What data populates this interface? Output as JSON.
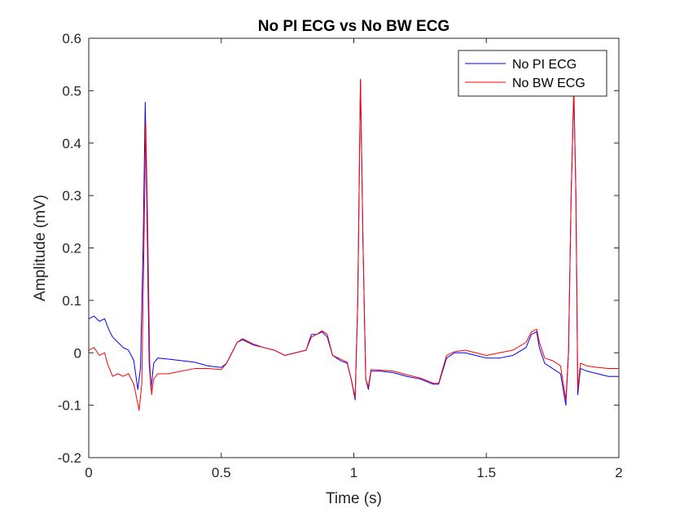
{
  "chart_data": {
    "type": "line",
    "title": "No PI ECG vs No BW ECG",
    "xlabel": "Time (s)",
    "ylabel": "Amplitude (mV)",
    "xlim": [
      0,
      2
    ],
    "ylim": [
      -0.2,
      0.6
    ],
    "xticks": [
      0,
      0.5,
      1,
      1.5,
      2
    ],
    "xtick_labels": [
      "0",
      "0.5",
      "1",
      "1.5",
      "2"
    ],
    "yticks": [
      -0.2,
      -0.1,
      0,
      0.1,
      0.2,
      0.3,
      0.4,
      0.5,
      0.6
    ],
    "ytick_labels": [
      "-0.2",
      "-0.1",
      "0",
      "0.1",
      "0.2",
      "0.3",
      "0.4",
      "0.5",
      "0.6"
    ],
    "grid": false,
    "legend": "top-right",
    "series": [
      {
        "name": "No PI ECG",
        "color": "#0000ff",
        "points": [
          [
            0.0,
            0.065
          ],
          [
            0.02,
            0.07
          ],
          [
            0.04,
            0.06
          ],
          [
            0.06,
            0.065
          ],
          [
            0.075,
            0.045
          ],
          [
            0.09,
            0.03
          ],
          [
            0.11,
            0.02
          ],
          [
            0.13,
            0.01
          ],
          [
            0.15,
            0.005
          ],
          [
            0.17,
            -0.015
          ],
          [
            0.185,
            -0.07
          ],
          [
            0.195,
            -0.03
          ],
          [
            0.205,
            0.2
          ],
          [
            0.213,
            0.478
          ],
          [
            0.22,
            0.25
          ],
          [
            0.228,
            -0.02
          ],
          [
            0.235,
            -0.07
          ],
          [
            0.245,
            -0.02
          ],
          [
            0.26,
            -0.01
          ],
          [
            0.3,
            -0.012
          ],
          [
            0.35,
            -0.015
          ],
          [
            0.4,
            -0.018
          ],
          [
            0.45,
            -0.025
          ],
          [
            0.5,
            -0.028
          ],
          [
            0.52,
            -0.02
          ],
          [
            0.54,
            0.0
          ],
          [
            0.56,
            0.02
          ],
          [
            0.58,
            0.025
          ],
          [
            0.62,
            0.015
          ],
          [
            0.66,
            0.01
          ],
          [
            0.7,
            0.005
          ],
          [
            0.74,
            -0.005
          ],
          [
            0.78,
            0.0
          ],
          [
            0.82,
            0.005
          ],
          [
            0.84,
            0.035
          ],
          [
            0.86,
            0.035
          ],
          [
            0.88,
            0.04
          ],
          [
            0.9,
            0.03
          ],
          [
            0.92,
            -0.005
          ],
          [
            0.95,
            -0.015
          ],
          [
            0.975,
            -0.02
          ],
          [
            0.99,
            -0.05
          ],
          [
            1.005,
            -0.09
          ],
          [
            1.015,
            0.1
          ],
          [
            1.025,
            0.52
          ],
          [
            1.035,
            0.2
          ],
          [
            1.045,
            -0.05
          ],
          [
            1.055,
            -0.07
          ],
          [
            1.065,
            -0.035
          ],
          [
            1.1,
            -0.035
          ],
          [
            1.15,
            -0.038
          ],
          [
            1.2,
            -0.045
          ],
          [
            1.25,
            -0.05
          ],
          [
            1.3,
            -0.06
          ],
          [
            1.32,
            -0.06
          ],
          [
            1.35,
            -0.01
          ],
          [
            1.38,
            0.0
          ],
          [
            1.42,
            0.0
          ],
          [
            1.46,
            -0.005
          ],
          [
            1.5,
            -0.01
          ],
          [
            1.55,
            -0.01
          ],
          [
            1.6,
            -0.005
          ],
          [
            1.65,
            0.01
          ],
          [
            1.67,
            0.035
          ],
          [
            1.69,
            0.04
          ],
          [
            1.7,
            0.01
          ],
          [
            1.72,
            -0.02
          ],
          [
            1.75,
            -0.03
          ],
          [
            1.78,
            -0.04
          ],
          [
            1.8,
            -0.1
          ],
          [
            1.81,
            0.0
          ],
          [
            1.82,
            0.3
          ],
          [
            1.83,
            0.5
          ],
          [
            1.838,
            0.3
          ],
          [
            1.845,
            -0.08
          ],
          [
            1.855,
            -0.03
          ],
          [
            1.88,
            -0.035
          ],
          [
            1.92,
            -0.04
          ],
          [
            1.96,
            -0.045
          ],
          [
            2.0,
            -0.045
          ]
        ]
      },
      {
        "name": "No BW ECG",
        "color": "#ff0000",
        "points": [
          [
            0.0,
            0.005
          ],
          [
            0.02,
            0.01
          ],
          [
            0.04,
            -0.005
          ],
          [
            0.06,
            0.0
          ],
          [
            0.07,
            -0.02
          ],
          [
            0.09,
            -0.045
          ],
          [
            0.11,
            -0.04
          ],
          [
            0.13,
            -0.045
          ],
          [
            0.15,
            -0.04
          ],
          [
            0.17,
            -0.06
          ],
          [
            0.19,
            -0.11
          ],
          [
            0.2,
            -0.06
          ],
          [
            0.208,
            0.2
          ],
          [
            0.215,
            0.44
          ],
          [
            0.222,
            0.25
          ],
          [
            0.23,
            -0.02
          ],
          [
            0.237,
            -0.08
          ],
          [
            0.245,
            -0.05
          ],
          [
            0.26,
            -0.04
          ],
          [
            0.3,
            -0.04
          ],
          [
            0.35,
            -0.035
          ],
          [
            0.4,
            -0.03
          ],
          [
            0.45,
            -0.03
          ],
          [
            0.5,
            -0.032
          ],
          [
            0.52,
            -0.02
          ],
          [
            0.54,
            0.0
          ],
          [
            0.56,
            0.02
          ],
          [
            0.58,
            0.027
          ],
          [
            0.62,
            0.017
          ],
          [
            0.66,
            0.01
          ],
          [
            0.7,
            0.005
          ],
          [
            0.74,
            -0.005
          ],
          [
            0.78,
            0.0
          ],
          [
            0.82,
            0.005
          ],
          [
            0.84,
            0.03
          ],
          [
            0.86,
            0.035
          ],
          [
            0.88,
            0.042
          ],
          [
            0.9,
            0.035
          ],
          [
            0.92,
            -0.005
          ],
          [
            0.95,
            -0.012
          ],
          [
            0.975,
            -0.018
          ],
          [
            0.99,
            -0.05
          ],
          [
            1.005,
            -0.085
          ],
          [
            1.015,
            0.1
          ],
          [
            1.025,
            0.522
          ],
          [
            1.035,
            0.2
          ],
          [
            1.045,
            -0.05
          ],
          [
            1.055,
            -0.065
          ],
          [
            1.065,
            -0.032
          ],
          [
            1.1,
            -0.033
          ],
          [
            1.15,
            -0.035
          ],
          [
            1.2,
            -0.042
          ],
          [
            1.25,
            -0.048
          ],
          [
            1.3,
            -0.058
          ],
          [
            1.32,
            -0.058
          ],
          [
            1.35,
            -0.005
          ],
          [
            1.38,
            0.002
          ],
          [
            1.42,
            0.005
          ],
          [
            1.46,
            0.0
          ],
          [
            1.5,
            -0.005
          ],
          [
            1.55,
            0.0
          ],
          [
            1.6,
            0.005
          ],
          [
            1.65,
            0.02
          ],
          [
            1.67,
            0.04
          ],
          [
            1.69,
            0.045
          ],
          [
            1.7,
            0.02
          ],
          [
            1.72,
            -0.01
          ],
          [
            1.75,
            -0.015
          ],
          [
            1.78,
            -0.025
          ],
          [
            1.8,
            -0.09
          ],
          [
            1.81,
            0.0
          ],
          [
            1.82,
            0.3
          ],
          [
            1.83,
            0.51
          ],
          [
            1.838,
            0.3
          ],
          [
            1.845,
            -0.07
          ],
          [
            1.855,
            -0.02
          ],
          [
            1.88,
            -0.025
          ],
          [
            1.92,
            -0.028
          ],
          [
            1.96,
            -0.03
          ],
          [
            2.0,
            -0.03
          ]
        ]
      }
    ]
  }
}
